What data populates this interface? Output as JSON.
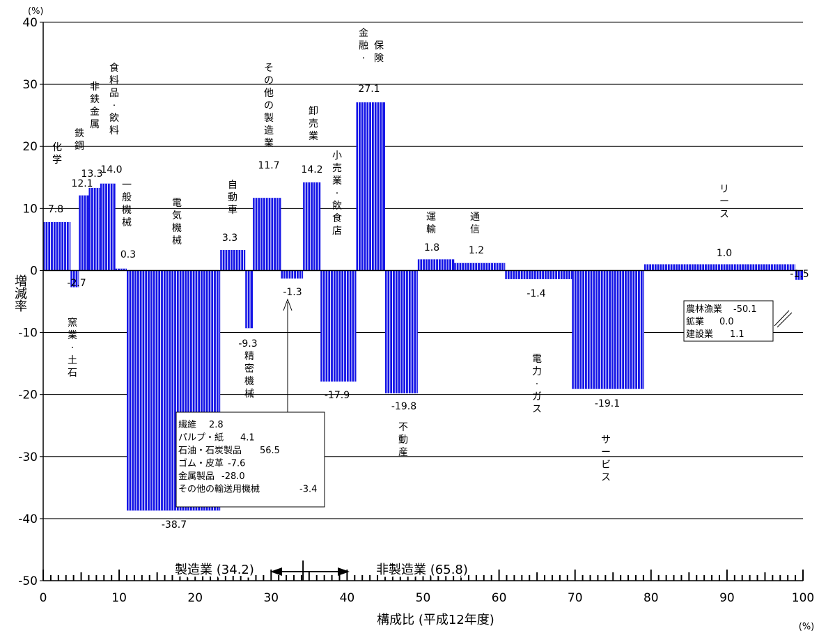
{
  "chart_data": {
    "type": "bar",
    "title": "",
    "subtitle": "",
    "xlabel": "構成比 (平成12年度)",
    "x_unit": "(%)",
    "ylabel": "増減率",
    "y_unit": "(%)",
    "xlim": [
      0,
      100
    ],
    "ylim": [
      -50,
      40
    ],
    "x_ticks": [
      "0",
      "10",
      "20",
      "30",
      "40",
      "50",
      "60",
      "70",
      "80",
      "90",
      "100"
    ],
    "y_ticks": [
      "-50",
      "-40",
      "-30",
      "-20",
      "-10",
      "0",
      "10",
      "20",
      "30",
      "40"
    ],
    "grid": "horizontal",
    "bar_color": "#1414e6",
    "bars": [
      {
        "category": "化学",
        "x_start": 0.0,
        "x_end": 3.6,
        "value": 7.8,
        "value_label": "7.8"
      },
      {
        "category": "窯業・土石",
        "x_start": 3.6,
        "x_end": 4.7,
        "value": -2.7,
        "value_label": "-2.7"
      },
      {
        "category": "鉄鋼",
        "x_start": 4.7,
        "x_end": 6.0,
        "value": 12.1,
        "value_label": "12.1"
      },
      {
        "category": "非鉄金属",
        "x_start": 6.0,
        "x_end": 7.5,
        "value": 13.3,
        "value_label": "13.3"
      },
      {
        "category": "食料品・飲料",
        "x_start": 7.5,
        "x_end": 9.5,
        "value": 14.0,
        "value_label": "14.0"
      },
      {
        "category": "一般機械",
        "x_start": 9.5,
        "x_end": 11.0,
        "value": 0.3,
        "value_label": "0.3"
      },
      {
        "category": "電気機械",
        "x_start": 11.0,
        "x_end": 23.3,
        "value": -38.7,
        "value_label": "-38.7"
      },
      {
        "category": "自動車",
        "x_start": 23.3,
        "x_end": 26.6,
        "value": 3.3,
        "value_label": "3.3"
      },
      {
        "category": "精密機械",
        "x_start": 26.6,
        "x_end": 27.6,
        "value": -9.3,
        "value_label": "-9.3"
      },
      {
        "category": "その他の製造業",
        "x_start": 27.6,
        "x_end": 31.3,
        "value": 11.7,
        "value_label": "11.7"
      },
      {
        "category": "",
        "x_start": 31.3,
        "x_end": 34.2,
        "value": -1.3,
        "value_label": "-1.3"
      },
      {
        "category": "卸売業",
        "x_start": 34.2,
        "x_end": 36.5,
        "value": 14.2,
        "value_label": "14.2"
      },
      {
        "category": "小売業・飲食店",
        "x_start": 36.5,
        "x_end": 41.2,
        "value": -17.9,
        "value_label": "-17.9"
      },
      {
        "category": "金融・保険",
        "x_start": 41.2,
        "x_end": 45.0,
        "value": 27.1,
        "value_label": "27.1"
      },
      {
        "category": "不動産",
        "x_start": 45.0,
        "x_end": 49.3,
        "value": -19.8,
        "value_label": "-19.8"
      },
      {
        "category": "運輸",
        "x_start": 49.3,
        "x_end": 54.1,
        "value": 1.8,
        "value_label": "1.8"
      },
      {
        "category": "通信",
        "x_start": 54.1,
        "x_end": 60.8,
        "value": 1.2,
        "value_label": "1.2"
      },
      {
        "category": "電力・ガス",
        "x_start": 60.8,
        "x_end": 69.6,
        "value": -1.4,
        "value_label": "-1.4"
      },
      {
        "category": "サービス",
        "x_start": 69.6,
        "x_end": 79.1,
        "value": -19.1,
        "value_label": "-19.1"
      },
      {
        "category": "リース",
        "x_start": 79.1,
        "x_end": 99.0,
        "value": 1.0,
        "value_label": "1.0"
      },
      {
        "category": "",
        "x_start": 99.0,
        "x_end": 100.0,
        "value": -1.5,
        "value_label": "-1.5"
      }
    ],
    "notes": {
      "manufacturing_other": [
        {
          "name": "繊維",
          "value": "2.8"
        },
        {
          "name": "パルプ・紙",
          "value": "4.1"
        },
        {
          "name": "石油・石炭製品",
          "value": "56.5"
        },
        {
          "name": "ゴム・皮革",
          "value": "-7.6"
        },
        {
          "name": "金属製品",
          "value": "-28.0"
        },
        {
          "name": "その他の輸送用機械",
          "value": "-3.4"
        }
      ],
      "primary": [
        {
          "name": "農林漁業",
          "value": "-50.1"
        },
        {
          "name": "鉱業",
          "value": "0.0"
        },
        {
          "name": "建設業",
          "value": "1.1"
        }
      ]
    },
    "sector_split": {
      "boundary_x": 34.2,
      "manufacturing_label": "製造業 (34.2)",
      "non_manufacturing_label": "非製造業 (65.8)"
    }
  }
}
